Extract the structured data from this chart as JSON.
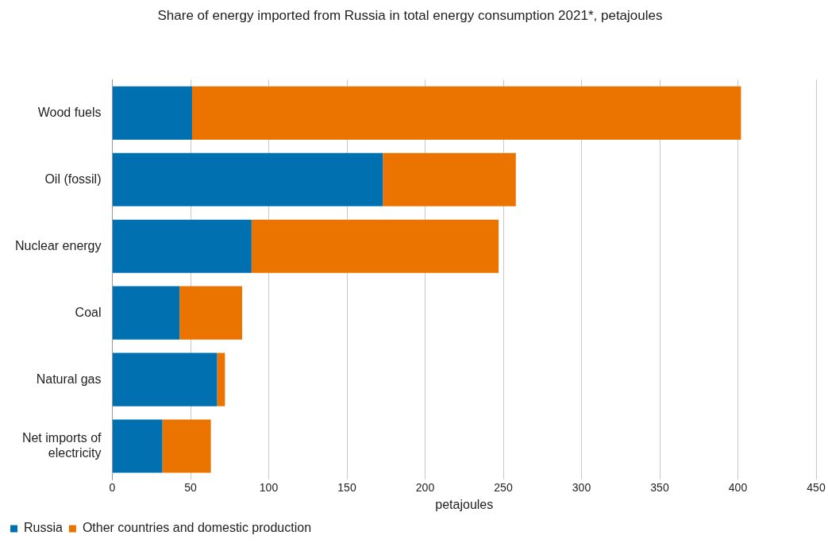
{
  "chart_data": {
    "type": "bar",
    "orientation": "horizontal",
    "stacked": true,
    "title": "Share of energy imported from Russia in total energy consumption 2021*, petajoules",
    "xlabel": "petajoules",
    "categories": [
      "Wood fuels",
      "Oil (fossil)",
      "Nuclear energy",
      "Coal",
      "Natural gas",
      "Net imports of electricity"
    ],
    "series": [
      {
        "name": "Russia",
        "color": "#0070b0",
        "values": [
          51,
          173,
          89,
          43,
          67,
          32
        ]
      },
      {
        "name": "Other countries and domestic production",
        "color": "#eb7400",
        "values": [
          351,
          85,
          158,
          40,
          5,
          31
        ]
      }
    ],
    "xlim": [
      0,
      450
    ],
    "xticks": [
      0,
      50,
      100,
      150,
      200,
      250,
      300,
      350,
      400,
      450
    ],
    "grid": "x",
    "legend": "bottom left"
  }
}
